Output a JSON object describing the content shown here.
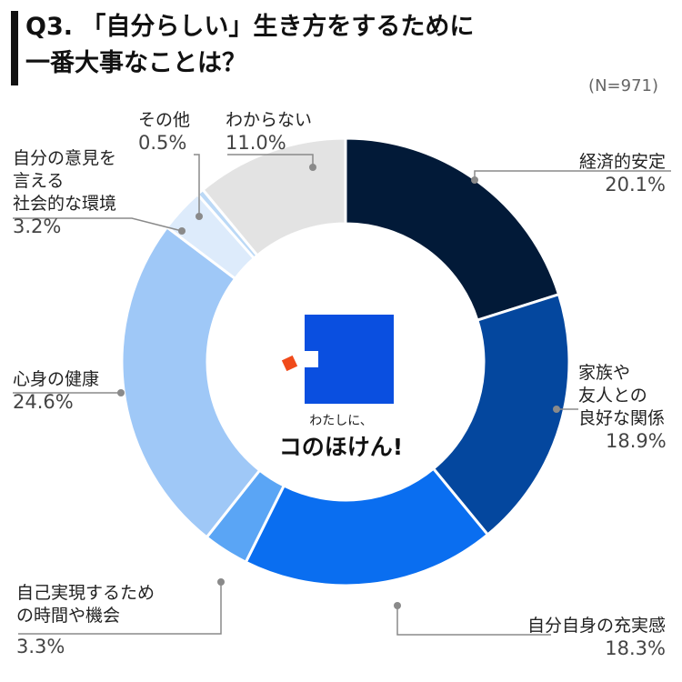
{
  "title_line1": "Q3. 「自分らしい」生き方をするために",
  "title_line2": "一番大事なことは？",
  "sample_size": "(N=971)",
  "logo": {
    "small_text": "わたしに、",
    "main_text": "コのほけん!"
  },
  "colors": {
    "economic": "#021a38",
    "family": "#04479e",
    "fulfillment": "#0a6ef0",
    "time": "#5aa5f5",
    "health": "#9fc8f7",
    "social": "#ddebfb",
    "other": "#bcd9f6",
    "unknown": "#e3e3e3"
  },
  "chart_data": {
    "type": "pie",
    "donut": true,
    "start_angle_deg": 0,
    "direction": "clockwise",
    "slices": [
      {
        "key": "economic",
        "label": "経済的安定",
        "value": 20.1,
        "display": "20.1%"
      },
      {
        "key": "family",
        "label": "家族や友人との良好な関係",
        "value": 18.9,
        "display": "18.9%"
      },
      {
        "key": "fulfillment",
        "label": "自分自身の充実感",
        "value": 18.3,
        "display": "18.3%"
      },
      {
        "key": "time",
        "label": "自己実現するための時間や機会",
        "value": 3.3,
        "display": "3.3%"
      },
      {
        "key": "health",
        "label": "心身の健康",
        "value": 24.6,
        "display": "24.6%"
      },
      {
        "key": "social",
        "label": "自分の意見を言える社会的な環境",
        "value": 3.2,
        "display": "3.2%"
      },
      {
        "key": "other",
        "label": "その他",
        "value": 0.5,
        "display": "0.5%"
      },
      {
        "key": "unknown",
        "label": "わからない",
        "value": 11.0,
        "display": "11.0%"
      }
    ]
  },
  "labels": {
    "economic": {
      "lines": [
        "経済的安定"
      ],
      "pct": "20.1%"
    },
    "family": {
      "lines": [
        "家族や",
        "友人との",
        "良好な関係"
      ],
      "pct": "18.9%"
    },
    "fulfillment": {
      "lines": [
        "自分自身の充実感"
      ],
      "pct": "18.3%"
    },
    "time": {
      "lines": [
        "自己実現するため",
        "の時間や機会"
      ],
      "pct": "3.3%"
    },
    "health": {
      "lines": [
        "心身の健康"
      ],
      "pct": "24.6%"
    },
    "social": {
      "lines": [
        "自分の意見を",
        "言える",
        "社会的な環境"
      ],
      "pct": "3.2%"
    },
    "other": {
      "lines": [
        "その他"
      ],
      "pct": "0.5%"
    },
    "unknown": {
      "lines": [
        "わからない"
      ],
      "pct": "11.0%"
    }
  }
}
